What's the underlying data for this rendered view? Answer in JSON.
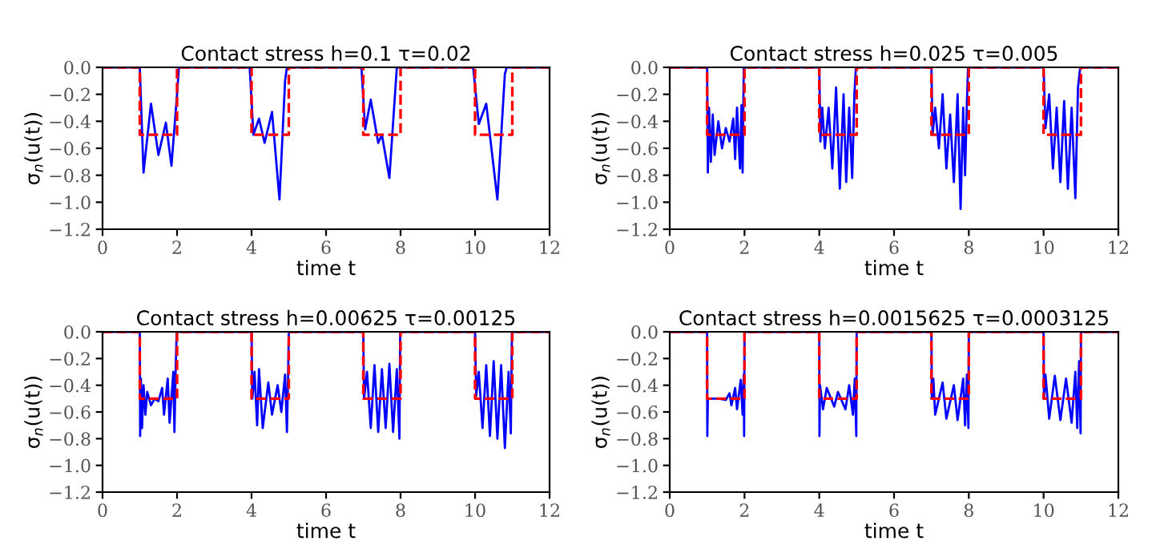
{
  "chart_data": [
    {
      "type": "line",
      "title": "Contact stress h=0.1 τ=0.02",
      "xlabel": "time t",
      "ylabel": "σ$_{n}$(u(t))",
      "xlim": [
        0,
        12
      ],
      "ylim": [
        -1.2,
        0.0
      ],
      "xticks": [
        0,
        2,
        4,
        6,
        8,
        10,
        12
      ],
      "yticks": [
        {
          "value": 0.0,
          "label": "0.0"
        },
        {
          "value": -0.2,
          "label": "−0.2"
        },
        {
          "value": -0.4,
          "label": "−0.4"
        },
        {
          "value": -0.6,
          "label": "−0.6"
        },
        {
          "value": -0.8,
          "label": "−0.8"
        },
        {
          "value": -1.0,
          "label": "−1.0"
        },
        {
          "value": -1.2,
          "label": "−1.2"
        }
      ],
      "grid": false,
      "series": [
        {
          "color": "#0000ff",
          "line_style": "solid",
          "x": [
            0,
            1.0,
            1.1,
            1.3,
            1.5,
            1.7,
            1.85,
            2.0,
            2.05,
            3.95,
            4.05,
            4.2,
            4.35,
            4.55,
            4.75,
            4.9,
            4.95,
            6.95,
            7.05,
            7.2,
            7.4,
            7.5,
            7.7,
            7.9,
            9.95,
            10.1,
            10.3,
            10.6,
            10.8,
            10.85,
            12
          ],
          "values": [
            0,
            0,
            -0.78,
            -0.27,
            -0.65,
            -0.41,
            -0.73,
            -0.2,
            0,
            0,
            -0.5,
            -0.38,
            -0.56,
            -0.33,
            -0.98,
            -0.1,
            0,
            0,
            -0.46,
            -0.24,
            -0.56,
            -0.5,
            -0.82,
            0,
            0,
            -0.42,
            -0.27,
            -0.98,
            -0.05,
            0,
            0
          ]
        },
        {
          "color": "#ff0000",
          "line_style": "dashed",
          "x": [
            0,
            1,
            1,
            2,
            2,
            4,
            4,
            5,
            5,
            7,
            7,
            8,
            8,
            10,
            10,
            11,
            11,
            12
          ],
          "values": [
            0,
            0,
            -0.5,
            -0.5,
            0,
            0,
            -0.5,
            -0.5,
            0,
            0,
            -0.5,
            -0.5,
            0,
            0,
            -0.5,
            -0.5,
            0,
            0
          ]
        }
      ]
    },
    {
      "type": "line",
      "title": "Contact stress h=0.025 τ=0.005",
      "xlabel": "time t",
      "ylabel": "σ$_{n}$(u(t))",
      "xlim": [
        0,
        12
      ],
      "ylim": [
        -1.2,
        0.0
      ],
      "xticks": [
        0,
        2,
        4,
        6,
        8,
        10,
        12
      ],
      "yticks": [
        {
          "value": 0.0,
          "label": "0.0"
        },
        {
          "value": -0.2,
          "label": "−0.2"
        },
        {
          "value": -0.4,
          "label": "−0.4"
        },
        {
          "value": -0.6,
          "label": "−0.6"
        },
        {
          "value": -0.8,
          "label": "−0.8"
        },
        {
          "value": -1.0,
          "label": "−1.0"
        },
        {
          "value": -1.2,
          "label": "−1.2"
        }
      ],
      "grid": false,
      "series": [
        {
          "color": "#0000ff",
          "line_style": "solid",
          "x": [
            0,
            1.0,
            1.02,
            1.05,
            1.1,
            1.15,
            1.2,
            1.3,
            1.4,
            1.5,
            1.6,
            1.7,
            1.75,
            1.8,
            1.88,
            1.92,
            1.95,
            1.98,
            4.0,
            4.03,
            4.08,
            4.15,
            4.25,
            4.35,
            4.45,
            4.55,
            4.65,
            4.72,
            4.8,
            4.88,
            4.94,
            4.98,
            7.0,
            7.03,
            7.1,
            7.2,
            7.3,
            7.4,
            7.5,
            7.6,
            7.7,
            7.78,
            7.85,
            7.9,
            7.95,
            7.98,
            10.0,
            10.05,
            10.15,
            10.25,
            10.35,
            10.45,
            10.55,
            10.65,
            10.75,
            10.85,
            10.92,
            10.98,
            12
          ],
          "values": [
            0,
            0,
            -0.78,
            -0.3,
            -0.7,
            -0.35,
            -0.65,
            -0.4,
            -0.6,
            -0.45,
            -0.55,
            -0.38,
            -0.68,
            -0.3,
            -0.75,
            -0.28,
            -0.78,
            0,
            0,
            -0.55,
            -0.3,
            -0.6,
            -0.3,
            -0.75,
            -0.15,
            -0.9,
            -0.2,
            -0.85,
            -0.3,
            -0.82,
            -0.2,
            0,
            0,
            -0.5,
            -0.3,
            -0.6,
            -0.2,
            -0.75,
            -0.35,
            -0.85,
            -0.2,
            -1.05,
            -0.3,
            -0.8,
            -0.25,
            0,
            0,
            -0.45,
            -0.2,
            -0.75,
            -0.3,
            -0.85,
            -0.25,
            -0.9,
            -0.3,
            -0.97,
            -0.15,
            0,
            0
          ]
        },
        {
          "color": "#ff0000",
          "line_style": "dashed",
          "x": [
            0,
            1,
            1,
            2,
            2,
            4,
            4,
            5,
            5,
            7,
            7,
            8,
            8,
            10,
            10,
            11,
            11,
            12
          ],
          "values": [
            0,
            0,
            -0.5,
            -0.5,
            0,
            0,
            -0.5,
            -0.5,
            0,
            0,
            -0.5,
            -0.5,
            0,
            0,
            -0.5,
            -0.5,
            0,
            0
          ]
        }
      ]
    },
    {
      "type": "line",
      "title": "Contact stress h=0.00625 τ=0.00125",
      "xlabel": "time t",
      "ylabel": "σ$_{n}$(u(t))",
      "xlim": [
        0,
        12
      ],
      "ylim": [
        -1.2,
        0.0
      ],
      "xticks": [
        0,
        2,
        4,
        6,
        8,
        10,
        12
      ],
      "yticks": [
        {
          "value": 0.0,
          "label": "0.0"
        },
        {
          "value": -0.2,
          "label": "−0.2"
        },
        {
          "value": -0.4,
          "label": "−0.4"
        },
        {
          "value": -0.6,
          "label": "−0.6"
        },
        {
          "value": -0.8,
          "label": "−0.8"
        },
        {
          "value": -1.0,
          "label": "−1.0"
        },
        {
          "value": -1.2,
          "label": "−1.2"
        }
      ],
      "grid": false,
      "series": [
        {
          "color": "#0000ff",
          "line_style": "solid",
          "x": [
            0,
            1.0,
            1.01,
            1.03,
            1.06,
            1.1,
            1.15,
            1.2,
            1.3,
            1.4,
            1.5,
            1.6,
            1.65,
            1.75,
            1.8,
            1.9,
            1.93,
            1.96,
            1.99,
            4.0,
            4.02,
            4.08,
            4.15,
            4.2,
            4.3,
            4.45,
            4.55,
            4.7,
            4.8,
            4.9,
            4.95,
            4.98,
            5.0,
            7.0,
            7.02,
            7.1,
            7.2,
            7.3,
            7.4,
            7.5,
            7.6,
            7.7,
            7.8,
            7.9,
            7.97,
            7.99,
            10.0,
            10.03,
            10.1,
            10.2,
            10.3,
            10.4,
            10.5,
            10.6,
            10.7,
            10.8,
            10.9,
            10.96,
            10.99,
            12
          ],
          "values": [
            0,
            0,
            -0.78,
            -0.35,
            -0.72,
            -0.4,
            -0.62,
            -0.45,
            -0.55,
            -0.5,
            -0.52,
            -0.42,
            -0.62,
            -0.35,
            -0.68,
            -0.3,
            -0.75,
            -0.32,
            0,
            0,
            -0.5,
            -0.3,
            -0.7,
            -0.28,
            -0.72,
            -0.38,
            -0.62,
            -0.4,
            -0.6,
            -0.32,
            -0.75,
            -0.35,
            0,
            0,
            -0.5,
            -0.3,
            -0.72,
            -0.25,
            -0.75,
            -0.28,
            -0.72,
            -0.24,
            -0.75,
            -0.28,
            -0.8,
            0,
            0,
            -0.48,
            -0.3,
            -0.72,
            -0.25,
            -0.78,
            -0.22,
            -0.8,
            -0.25,
            -0.87,
            -0.3,
            -0.76,
            0,
            0
          ]
        },
        {
          "color": "#ff0000",
          "line_style": "dashed",
          "x": [
            0,
            1,
            1,
            2,
            2,
            4,
            4,
            5,
            5,
            7,
            7,
            8,
            8,
            10,
            10,
            11,
            11,
            12
          ],
          "values": [
            0,
            0,
            -0.5,
            -0.5,
            0,
            0,
            -0.5,
            -0.5,
            0,
            0,
            -0.5,
            -0.5,
            0,
            0,
            -0.5,
            -0.5,
            0,
            0
          ]
        }
      ]
    },
    {
      "type": "line",
      "title": "Contact stress h=0.0015625 τ=0.0003125",
      "xlabel": "time t",
      "ylabel": "σ$_{n}$(u(t))",
      "xlim": [
        0,
        12
      ],
      "ylim": [
        -1.2,
        0.0
      ],
      "xticks": [
        0,
        2,
        4,
        6,
        8,
        10,
        12
      ],
      "yticks": [
        {
          "value": 0.0,
          "label": "0.0"
        },
        {
          "value": -0.2,
          "label": "−0.2"
        },
        {
          "value": -0.4,
          "label": "−0.4"
        },
        {
          "value": -0.6,
          "label": "−0.6"
        },
        {
          "value": -0.8,
          "label": "−0.8"
        },
        {
          "value": -1.0,
          "label": "−1.0"
        },
        {
          "value": -1.2,
          "label": "−1.2"
        }
      ],
      "grid": false,
      "series": [
        {
          "color": "#0000ff",
          "line_style": "solid",
          "x": [
            0,
            1.0,
            1.005,
            1.02,
            1.3,
            1.5,
            1.6,
            1.65,
            1.75,
            1.8,
            1.9,
            1.95,
            1.98,
            1.99,
            2.0,
            4.0,
            4.005,
            4.02,
            4.1,
            4.2,
            4.4,
            4.5,
            4.7,
            4.8,
            4.9,
            4.95,
            4.99,
            5.0,
            7.0,
            7.01,
            7.05,
            7.1,
            7.3,
            7.4,
            7.6,
            7.7,
            7.85,
            7.9,
            7.95,
            7.99,
            8.0,
            10.0,
            10.01,
            10.05,
            10.15,
            10.3,
            10.45,
            10.6,
            10.75,
            10.85,
            10.9,
            10.95,
            10.99,
            11.0,
            12
          ],
          "values": [
            0,
            0,
            -0.78,
            -0.5,
            -0.5,
            -0.51,
            -0.46,
            -0.55,
            -0.42,
            -0.58,
            -0.36,
            -0.62,
            -0.32,
            -0.78,
            0,
            0,
            -0.78,
            -0.4,
            -0.58,
            -0.42,
            -0.56,
            -0.45,
            -0.58,
            -0.4,
            -0.62,
            -0.35,
            -0.78,
            0,
            0,
            -0.5,
            -0.35,
            -0.62,
            -0.38,
            -0.65,
            -0.4,
            -0.66,
            -0.35,
            -0.7,
            -0.32,
            -0.72,
            0,
            0,
            -0.5,
            -0.32,
            -0.65,
            -0.33,
            -0.66,
            -0.35,
            -0.68,
            -0.3,
            -0.72,
            -0.22,
            -0.76,
            0,
            0
          ]
        },
        {
          "color": "#ff0000",
          "line_style": "dashed",
          "x": [
            0,
            1,
            1,
            2,
            2,
            4,
            4,
            5,
            5,
            7,
            7,
            8,
            8,
            10,
            10,
            11,
            11,
            12
          ],
          "values": [
            0,
            0,
            -0.5,
            -0.5,
            0,
            0,
            -0.5,
            -0.5,
            0,
            0,
            -0.5,
            -0.5,
            0,
            0,
            -0.5,
            -0.5,
            0,
            0
          ]
        }
      ]
    }
  ]
}
